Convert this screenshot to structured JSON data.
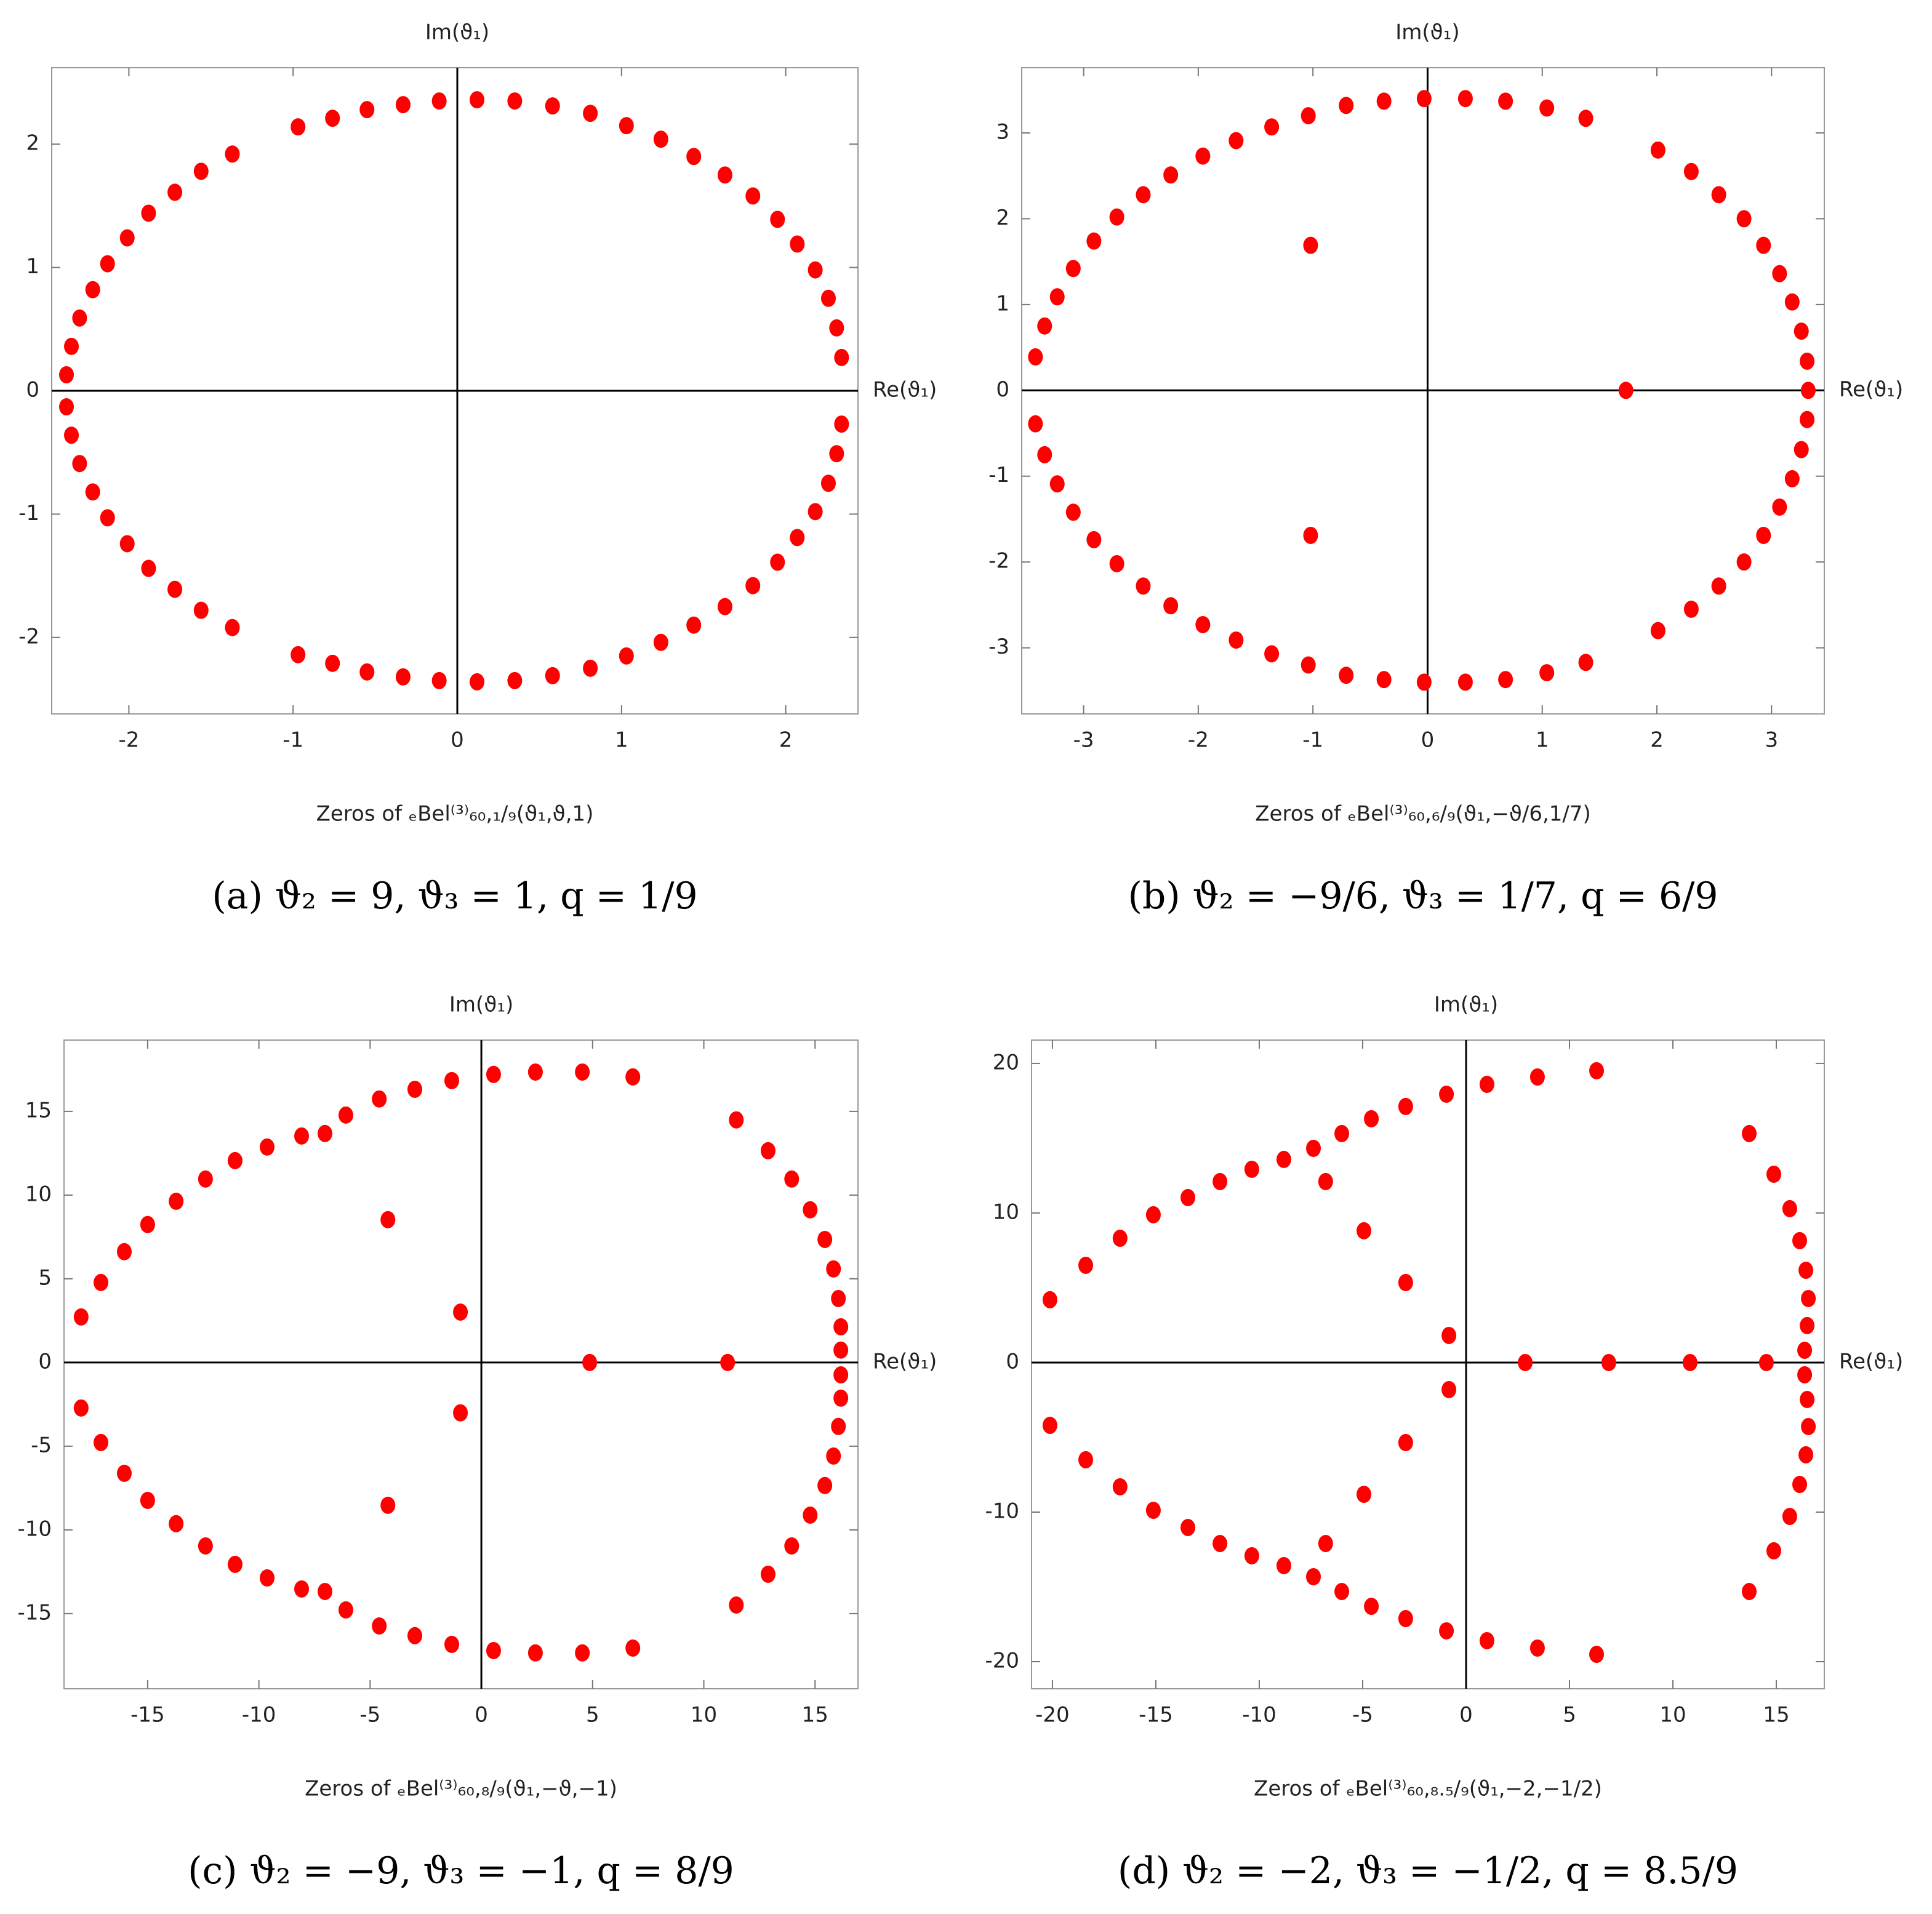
{
  "chart_data": [
    {
      "type": "scatter",
      "color": "#ff0000",
      "panel_label": "(a)",
      "caption": "ϑ₂ = 9, ϑ₃ = 1, q = 1/9",
      "xlabel": "Zeros of ₑBel⁽³⁾₆₀,₁/₉(ϑ₁,ϑ,1)",
      "axis_x_label": "Re(ϑ₁)",
      "axis_y_label": "Im(ϑ₁)",
      "xlim": [
        -2.47,
        2.44
      ],
      "ylim": [
        -2.62,
        2.62
      ],
      "xticks": [
        -2,
        -1,
        0,
        1,
        2
      ],
      "yticks": [
        -2,
        -1,
        0,
        1,
        2
      ],
      "x": [
        -2.38,
        -2.35,
        -2.3,
        -2.22,
        -2.13,
        -2.01,
        -1.88,
        -1.72,
        -1.56,
        -1.37,
        -0.97,
        -0.76,
        -0.55,
        -0.33,
        -0.11,
        0.12,
        0.35,
        0.58,
        0.81,
        1.03,
        1.24,
        1.44,
        1.63,
        1.8,
        1.95,
        2.07,
        2.18,
        2.26,
        2.31,
        2.34,
        -2.38,
        -2.35,
        -2.3,
        -2.22,
        -2.13,
        -2.01,
        -1.88,
        -1.72,
        -1.56,
        -1.37,
        -0.97,
        -0.76,
        -0.55,
        -0.33,
        -0.11,
        0.12,
        0.35,
        0.58,
        0.81,
        1.03,
        1.24,
        1.44,
        1.63,
        1.8,
        1.95,
        2.07,
        2.18,
        2.26,
        2.31,
        2.34
      ],
      "values": [
        0.13,
        0.36,
        0.59,
        0.82,
        1.03,
        1.24,
        1.44,
        1.61,
        1.78,
        1.92,
        2.14,
        2.21,
        2.28,
        2.32,
        2.35,
        2.36,
        2.35,
        2.31,
        2.25,
        2.15,
        2.04,
        1.9,
        1.75,
        1.58,
        1.39,
        1.19,
        0.98,
        0.75,
        0.51,
        0.27,
        -0.13,
        -0.36,
        -0.59,
        -0.82,
        -1.03,
        -1.24,
        -1.44,
        -1.61,
        -1.78,
        -1.92,
        -2.14,
        -2.21,
        -2.28,
        -2.32,
        -2.35,
        -2.36,
        -2.35,
        -2.31,
        -2.25,
        -2.15,
        -2.04,
        -1.9,
        -1.75,
        -1.58,
        -1.39,
        -1.19,
        -0.98,
        -0.75,
        -0.51,
        -0.27
      ]
    },
    {
      "type": "scatter",
      "color": "#ff0000",
      "panel_label": "(b)",
      "caption": "ϑ₂ = −9/6, ϑ₃ = 1/7, q = 6/9",
      "xlabel": "Zeros of ₑBel⁽³⁾₆₀,₆/₉(ϑ₁,−ϑ/6,1/7)",
      "axis_x_label": "Re(ϑ₁)",
      "axis_y_label": "Im(ϑ₁)",
      "xlim": [
        -3.54,
        3.46
      ],
      "ylim": [
        -3.77,
        3.76
      ],
      "xticks": [
        -3,
        -2,
        -1,
        0,
        1,
        2,
        3
      ],
      "yticks": [
        -3,
        -2,
        -1,
        0,
        1,
        2,
        3
      ],
      "x": [
        -3.42,
        -3.34,
        -3.23,
        -3.09,
        -2.91,
        -2.71,
        -2.48,
        -2.24,
        -1.96,
        -1.67,
        -1.36,
        -1.04,
        -0.71,
        -0.38,
        -0.03,
        0.33,
        0.68,
        1.04,
        1.38,
        2.01,
        2.3,
        2.54,
        2.76,
        2.93,
        3.07,
        3.18,
        3.26,
        3.31,
        -1.02,
        1.73,
        3.32,
        -3.42,
        -3.34,
        -3.23,
        -3.09,
        -2.91,
        -2.71,
        -2.48,
        -2.24,
        -1.96,
        -1.67,
        -1.36,
        -1.04,
        -0.71,
        -0.38,
        -0.03,
        0.33,
        0.68,
        1.04,
        1.38,
        2.01,
        2.3,
        2.54,
        2.76,
        2.93,
        3.07,
        3.18,
        3.26,
        3.31,
        -1.02
      ],
      "values": [
        0.39,
        0.75,
        1.09,
        1.42,
        1.74,
        2.02,
        2.28,
        2.51,
        2.73,
        2.91,
        3.07,
        3.2,
        3.32,
        3.37,
        3.4,
        3.4,
        3.37,
        3.29,
        3.17,
        2.8,
        2.55,
        2.28,
        2.0,
        1.69,
        1.36,
        1.03,
        0.69,
        0.34,
        1.69,
        0,
        0,
        -0.39,
        -0.75,
        -1.09,
        -1.42,
        -1.74,
        -2.02,
        -2.28,
        -2.51,
        -2.73,
        -2.91,
        -3.07,
        -3.2,
        -3.32,
        -3.37,
        -3.4,
        -3.4,
        -3.37,
        -3.29,
        -3.17,
        -2.8,
        -2.55,
        -2.28,
        -2.0,
        -1.69,
        -1.36,
        -1.03,
        -0.69,
        -0.34,
        -1.69
      ]
    },
    {
      "type": "scatter",
      "color": "#ff0000",
      "panel_label": "(c)",
      "caption": "ϑ₂ = −9, ϑ₃ = −1, q = 8/9",
      "xlabel": "Zeros of ₑBel⁽³⁾₆₀,₈/₉(ϑ₁,−ϑ,−1)",
      "axis_x_label": "Re(ϑ₁)",
      "axis_y_label": "Im(ϑ₁)",
      "xlim": [
        -18.76,
        16.93
      ],
      "ylim": [
        -19.49,
        19.26
      ],
      "xticks": [
        -15,
        -10,
        -5,
        0,
        5,
        10,
        15
      ],
      "yticks": [
        -15,
        -10,
        -5,
        0,
        5,
        10,
        15
      ],
      "x": [
        -17.99,
        -17.1,
        -16.05,
        -15.0,
        -13.72,
        -12.4,
        -11.07,
        -9.63,
        -8.08,
        -7.03,
        -6.09,
        -4.59,
        -2.99,
        -1.33,
        0.55,
        2.43,
        4.54,
        6.81,
        11.46,
        12.89,
        13.95,
        14.78,
        15.44,
        15.83,
        16.05,
        16.16,
        16.16,
        -4.2,
        -0.94,
        4.87,
        11.07,
        -17.99,
        -17.1,
        -16.05,
        -15.0,
        -13.72,
        -12.4,
        -11.07,
        -9.63,
        -8.08,
        -7.03,
        -6.09,
        -4.59,
        -2.99,
        -1.33,
        0.55,
        2.43,
        4.54,
        6.81,
        11.46,
        12.89,
        13.95,
        14.78,
        15.44,
        15.83,
        16.05,
        16.16,
        16.16,
        -4.2,
        -0.94
      ],
      "values": [
        2.72,
        4.78,
        6.62,
        8.24,
        9.63,
        10.96,
        12.06,
        12.87,
        13.53,
        13.68,
        14.78,
        15.74,
        16.32,
        16.84,
        17.21,
        17.35,
        17.35,
        17.06,
        14.49,
        12.65,
        10.96,
        9.12,
        7.35,
        5.59,
        3.82,
        2.13,
        0.74,
        8.53,
        3.01,
        0,
        0,
        -2.72,
        -4.78,
        -6.62,
        -8.24,
        -9.63,
        -10.96,
        -12.06,
        -12.87,
        -13.53,
        -13.68,
        -14.78,
        -15.74,
        -16.32,
        -16.84,
        -17.21,
        -17.35,
        -17.35,
        -17.06,
        -14.49,
        -12.65,
        -10.96,
        -9.12,
        -7.35,
        -5.59,
        -3.82,
        -2.13,
        -0.74,
        -8.53,
        -3.01
      ]
    },
    {
      "type": "scatter",
      "color": "#ff0000",
      "panel_label": "(d)",
      "caption": "ϑ₂ = −2, ϑ₃ = −1/2, q = 8.5/9",
      "xlabel": "Zeros of ₑBel⁽³⁾₆₀,₈.₅/₉(ϑ₁,−2,−1/2)",
      "axis_x_label": "Re(ϑ₁)",
      "axis_y_label": "Im(ϑ₁)",
      "xlim": [
        -21.01,
        17.32
      ],
      "ylim": [
        -21.81,
        21.56
      ],
      "xticks": [
        -20,
        -15,
        -10,
        -5,
        0,
        5,
        10,
        15
      ],
      "yticks": [
        -20,
        -10,
        0,
        10,
        20
      ],
      "x": [
        -20.12,
        -18.39,
        -16.73,
        -15.12,
        -13.45,
        -11.9,
        -10.36,
        -8.81,
        -7.38,
        -6.01,
        -4.58,
        -2.92,
        -0.95,
        1.01,
        3.45,
        6.31,
        13.69,
        14.88,
        15.65,
        16.13,
        16.43,
        16.55,
        16.49,
        16.37,
        -6.79,
        -4.94,
        -2.92,
        -0.83,
        2.86,
        6.9,
        10.83,
        14.52,
        -20.12,
        -18.39,
        -16.73,
        -15.12,
        -13.45,
        -11.9,
        -10.36,
        -8.81,
        -7.38,
        -6.01,
        -4.58,
        -2.92,
        -0.95,
        1.01,
        3.45,
        6.31,
        13.69,
        14.88,
        15.65,
        16.13,
        16.43,
        16.55,
        16.49,
        16.37,
        -6.79,
        -4.94,
        -2.92,
        -0.83
      ],
      "values": [
        4.2,
        6.5,
        8.31,
        9.88,
        11.03,
        12.1,
        12.92,
        13.58,
        14.32,
        15.31,
        16.3,
        17.12,
        17.94,
        18.6,
        19.09,
        19.51,
        15.31,
        12.59,
        10.29,
        8.15,
        6.17,
        4.28,
        2.47,
        0.82,
        12.1,
        8.81,
        5.35,
        1.81,
        0,
        0,
        0,
        0,
        -4.2,
        -6.5,
        -8.31,
        -9.88,
        -11.03,
        -12.1,
        -12.92,
        -13.58,
        -14.32,
        -15.31,
        -16.3,
        -17.12,
        -17.94,
        -18.6,
        -19.09,
        -19.51,
        -15.31,
        -12.59,
        -10.29,
        -8.15,
        -6.17,
        -4.28,
        -2.47,
        -0.82,
        -12.1,
        -8.81,
        -5.35,
        -1.81
      ]
    }
  ]
}
